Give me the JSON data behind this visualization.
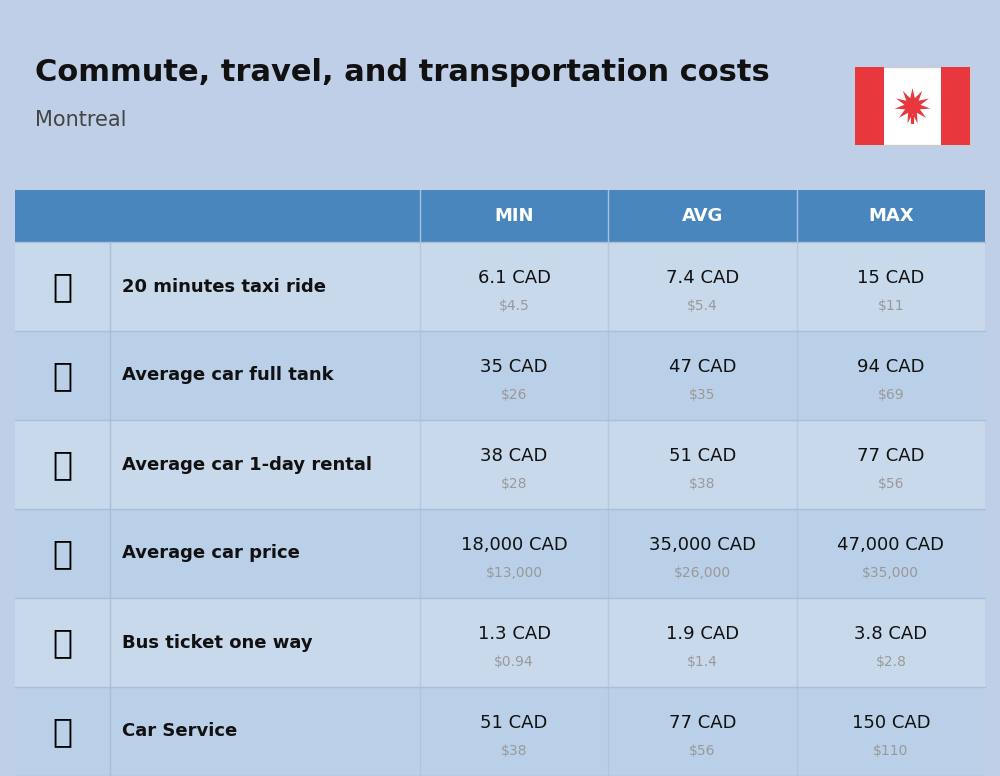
{
  "title": "Commute, travel, and transportation costs",
  "subtitle": "Montreal",
  "bg_color": "#BFCFE7",
  "header_bg_color": "#4A86BE",
  "header_text_color": "#FFFFFF",
  "col_header_labels": [
    "MIN",
    "AVG",
    "MAX"
  ],
  "row_alt_colors": [
    "#C9D9EC",
    "#BAD0E8"
  ],
  "divider_color": "#A8BFDA",
  "label_color": "#111111",
  "usd_color": "#999999",
  "rows": [
    {
      "label": "20 minutes taxi ride",
      "icon": "🚕",
      "min_cad": "6.1 CAD",
      "min_usd": "$4.5",
      "avg_cad": "7.4 CAD",
      "avg_usd": "$5.4",
      "max_cad": "15 CAD",
      "max_usd": "$11"
    },
    {
      "label": "Average car full tank",
      "icon": "⛽",
      "min_cad": "35 CAD",
      "min_usd": "$26",
      "avg_cad": "47 CAD",
      "avg_usd": "$35",
      "max_cad": "94 CAD",
      "max_usd": "$69"
    },
    {
      "label": "Average car 1-day rental",
      "icon": "🚙",
      "min_cad": "38 CAD",
      "min_usd": "$28",
      "avg_cad": "51 CAD",
      "avg_usd": "$38",
      "max_cad": "77 CAD",
      "max_usd": "$56"
    },
    {
      "label": "Average car price",
      "icon": "🚗",
      "min_cad": "18,000 CAD",
      "min_usd": "$13,000",
      "avg_cad": "35,000 CAD",
      "avg_usd": "$26,000",
      "max_cad": "47,000 CAD",
      "max_usd": "$35,000"
    },
    {
      "label": "Bus ticket one way",
      "icon": "🚌",
      "min_cad": "1.3 CAD",
      "min_usd": "$0.94",
      "avg_cad": "1.9 CAD",
      "avg_usd": "$1.4",
      "max_cad": "3.8 CAD",
      "max_usd": "$2.8"
    },
    {
      "label": "Car Service",
      "icon": "🔧",
      "min_cad": "51 CAD",
      "min_usd": "$38",
      "avg_cad": "77 CAD",
      "avg_usd": "$56",
      "max_cad": "150 CAD",
      "max_usd": "$110"
    }
  ],
  "icon_display": [
    "🚕",
    "⛽️",
    "🚙",
    "🚗",
    "🚌",
    "🔧🚗"
  ],
  "title_fontsize": 22,
  "subtitle_fontsize": 15,
  "header_fontsize": 13,
  "label_fontsize": 13,
  "cad_fontsize": 13,
  "usd_fontsize": 10,
  "icon_fontsize": 24,
  "flag_color_red": "#E8383D",
  "flag_color_white": "#FFFFFF"
}
